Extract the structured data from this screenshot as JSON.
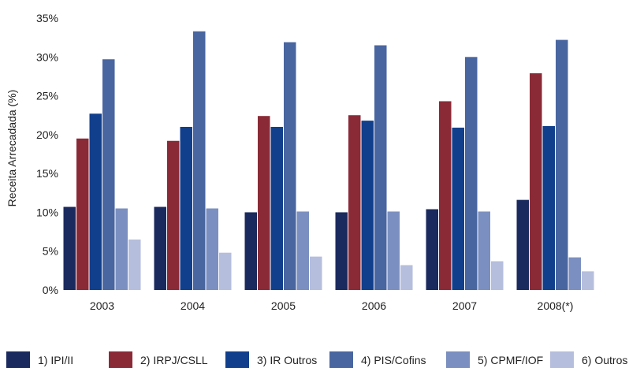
{
  "chart_data": {
    "type": "bar",
    "ylabel": "Receita Arrecadada (%)",
    "xlabel": "",
    "title": "",
    "ylim": [
      0,
      35
    ],
    "y_ticks": [
      "0%",
      "5%",
      "10%",
      "15%",
      "20%",
      "25%",
      "30%",
      "35%"
    ],
    "y_tick_values": [
      0,
      5,
      10,
      15,
      20,
      25,
      30,
      35
    ],
    "categories": [
      "2003",
      "2004",
      "2005",
      "2006",
      "2007",
      "2008(*)"
    ],
    "grid": false,
    "legend_position": "bottom",
    "series": [
      {
        "name": "1) IPI/II",
        "color": "#1b2a5e",
        "values": [
          10.7,
          10.7,
          10.0,
          10.0,
          10.4,
          11.6
        ]
      },
      {
        "name": "2) IRPJ/CSLL",
        "color": "#8b2a37",
        "values": [
          19.5,
          19.2,
          22.4,
          22.5,
          24.3,
          27.9
        ]
      },
      {
        "name": "3) IR Outros",
        "color": "#123f8c",
        "values": [
          22.7,
          21.0,
          21.0,
          21.8,
          20.9,
          21.1
        ]
      },
      {
        "name": "4) PIS/Cofins",
        "color": "#4a66a0",
        "values": [
          29.7,
          33.3,
          31.9,
          31.5,
          30.0,
          32.2
        ]
      },
      {
        "name": "5) CPMF/IOF",
        "color": "#7b8fc0",
        "values": [
          10.5,
          10.5,
          10.1,
          10.1,
          10.1,
          4.2
        ]
      },
      {
        "name": "6) Outros",
        "color": "#b6bedd",
        "values": [
          6.5,
          4.8,
          4.3,
          3.2,
          3.7,
          2.4
        ]
      }
    ]
  }
}
